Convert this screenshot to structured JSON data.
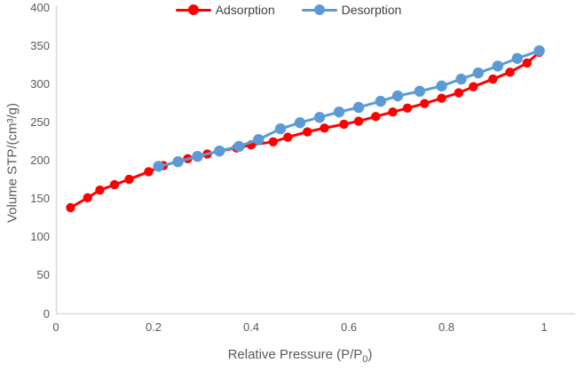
{
  "colors": {
    "adsorption": "#FF0000",
    "desorption": "#5B9BD5",
    "axis_line": "#D9D9D9",
    "tick_text": "#595959",
    "legend_text": "#404040",
    "background": "#FFFFFF"
  },
  "legend": {
    "items": [
      {
        "label": "Adsorption",
        "color": "#FF0000"
      },
      {
        "label": "Desorption",
        "color": "#5B9BD5"
      }
    ],
    "position": "top-center"
  },
  "chart_data": {
    "type": "line",
    "title": "",
    "ylabel": "Volume STP/(cm³/g)",
    "xlabel_parts": {
      "pre": "Relative Pressure (P/P",
      "sub": "0",
      "post": ")"
    },
    "xlim": [
      0,
      1
    ],
    "ylim": [
      0,
      400
    ],
    "grid": false,
    "legend_position": "top-center",
    "x_ticks": {
      "values": [
        0,
        0.2,
        0.4,
        0.6,
        0.8,
        1
      ],
      "labels": [
        "0",
        "0.2",
        "0.4",
        "0.6",
        "0.8",
        "1"
      ]
    },
    "y_ticks": {
      "values": [
        0,
        50,
        100,
        150,
        200,
        250,
        300,
        350,
        400
      ],
      "labels": [
        "0",
        "50",
        "100",
        "150",
        "200",
        "250",
        "300",
        "350",
        "400"
      ]
    },
    "series": [
      {
        "name": "Adsorption",
        "color": "#FF0000",
        "marker": "circle",
        "x": [
          0.03,
          0.065,
          0.09,
          0.12,
          0.15,
          0.19,
          0.22,
          0.27,
          0.31,
          0.335,
          0.37,
          0.4,
          0.445,
          0.475,
          0.515,
          0.55,
          0.59,
          0.62,
          0.655,
          0.69,
          0.72,
          0.755,
          0.79,
          0.825,
          0.855,
          0.895,
          0.93,
          0.965,
          0.99
        ],
        "y": [
          138,
          151,
          161,
          168,
          175,
          185,
          193,
          202,
          208,
          212,
          216,
          220,
          224,
          230,
          237,
          242,
          247,
          251,
          257,
          263,
          268,
          274,
          281,
          288,
          296,
          306,
          315,
          327,
          341
        ]
      },
      {
        "name": "Desorption",
        "color": "#5B9BD5",
        "marker": "circle",
        "x": [
          0.21,
          0.25,
          0.29,
          0.335,
          0.375,
          0.415,
          0.46,
          0.5,
          0.54,
          0.58,
          0.62,
          0.665,
          0.7,
          0.745,
          0.79,
          0.83,
          0.865,
          0.905,
          0.945,
          0.99
        ],
        "y": [
          192,
          198,
          205,
          212,
          218,
          227,
          241,
          249,
          256,
          263,
          269,
          277,
          284,
          290,
          297,
          306,
          314,
          323,
          333,
          343
        ]
      }
    ]
  }
}
